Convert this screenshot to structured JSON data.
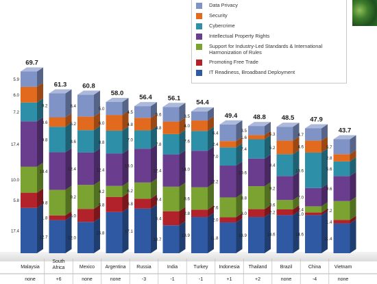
{
  "legend": [
    {
      "label": "Data Privacy",
      "color": "#7f93c6"
    },
    {
      "label": "Security",
      "color": "#e26a1f"
    },
    {
      "label": "Cybercrime",
      "color": "#2e8fa8"
    },
    {
      "label": "Intellectual Property Rights",
      "color": "#6b3d8f"
    },
    {
      "label": "Support for Industry-Led Standards & International Harmonization of Rules",
      "color": "#7aa332"
    },
    {
      "label": "Promoting Free Trade",
      "color": "#b2222a"
    },
    {
      "label": "IT Readiness, Broadband Deployment",
      "color": "#2f5aa3"
    }
  ],
  "chart_data": {
    "type": "bar",
    "stacked": true,
    "categories": [
      "Malaysia",
      "South Africa",
      "Mexico",
      "Argentina",
      "Russia",
      "India",
      "Turkey",
      "Indonesia",
      "Thailand",
      "Brazil",
      "China",
      "Vietnam"
    ],
    "category_lines": [
      [
        "Malaysia"
      ],
      [
        "South",
        "Africa"
      ],
      [
        "Mexico"
      ],
      [
        "Argentina"
      ],
      [
        "Russia"
      ],
      [
        "India"
      ],
      [
        "Turkey"
      ],
      [
        "Indonesia"
      ],
      [
        "Thailand"
      ],
      [
        "Brazil"
      ],
      [
        "China"
      ],
      [
        "Vietnam"
      ]
    ],
    "totals": [
      "69.7",
      "61.3",
      "60.8",
      "58.0",
      "56.4",
      "56.1",
      "54.4",
      "49.4",
      "48.8",
      "48.5",
      "47.9",
      "43.7"
    ],
    "rank_change": [
      "none",
      "+6",
      "none",
      "none",
      "-3",
      "-1",
      "-1",
      "+1",
      "+2",
      "none",
      "-4",
      "none"
    ],
    "series_order_bottom_to_top": [
      "IT Readiness, Broadband Deployment",
      "Promoting Free Trade",
      "Support for Industry-Led Standards & International Harmonization of Rules",
      "Intellectual Property Rights",
      "Cybercrime",
      "Security",
      "Data Privacy"
    ],
    "series": [
      {
        "name": "IT Readiness, Broadband Deployment",
        "values": [
          17.4,
          12.7,
          12.0,
          15.8,
          17.1,
          10.7,
          13.9,
          11.8,
          13.9,
          14.6,
          14.6,
          11.4
        ]
      },
      {
        "name": "Promoting Free Trade",
        "values": [
          5.8,
          1.8,
          5.0,
          5.8,
          3.8,
          5.4,
          2.8,
          2.0,
          3.0,
          2.2,
          1.0,
          1.4
        ]
      },
      {
        "name": "Support for Industry-Led Standards & International Harmonization of Rules",
        "values": [
          10.0,
          9.8,
          9.2,
          4.2,
          6.2,
          9.4,
          8.6,
          7.6,
          8.8,
          3.6,
          2.4,
          7.2
        ]
      },
      {
        "name": "Intellectual Property Rights",
        "values": [
          17.4,
          14.4,
          12.4,
          12.4,
          13.0,
          12.4,
          14.0,
          12.2,
          10.6,
          9.2,
          7.0,
          9.6
        ]
      },
      {
        "name": "Cybercrime",
        "values": [
          7.2,
          9.8,
          8.6,
          8.8,
          7.0,
          7.8,
          7.6,
          7.0,
          7.4,
          8.4,
          13.6,
          5.6
        ]
      },
      {
        "name": "Security",
        "values": [
          6.0,
          3.6,
          5.2,
          6.0,
          4.8,
          4.8,
          4.0,
          2.4,
          1.6,
          5.2,
          4.6,
          2.8
        ]
      },
      {
        "name": "Data Privacy",
        "values": [
          5.9,
          9.2,
          8.4,
          5.0,
          4.5,
          5.6,
          3.5,
          6.4,
          3.5,
          5.3,
          4.7,
          5.7
        ]
      }
    ],
    "ylim": [
      0,
      75
    ],
    "grid": false,
    "legend_position": "top-center"
  }
}
